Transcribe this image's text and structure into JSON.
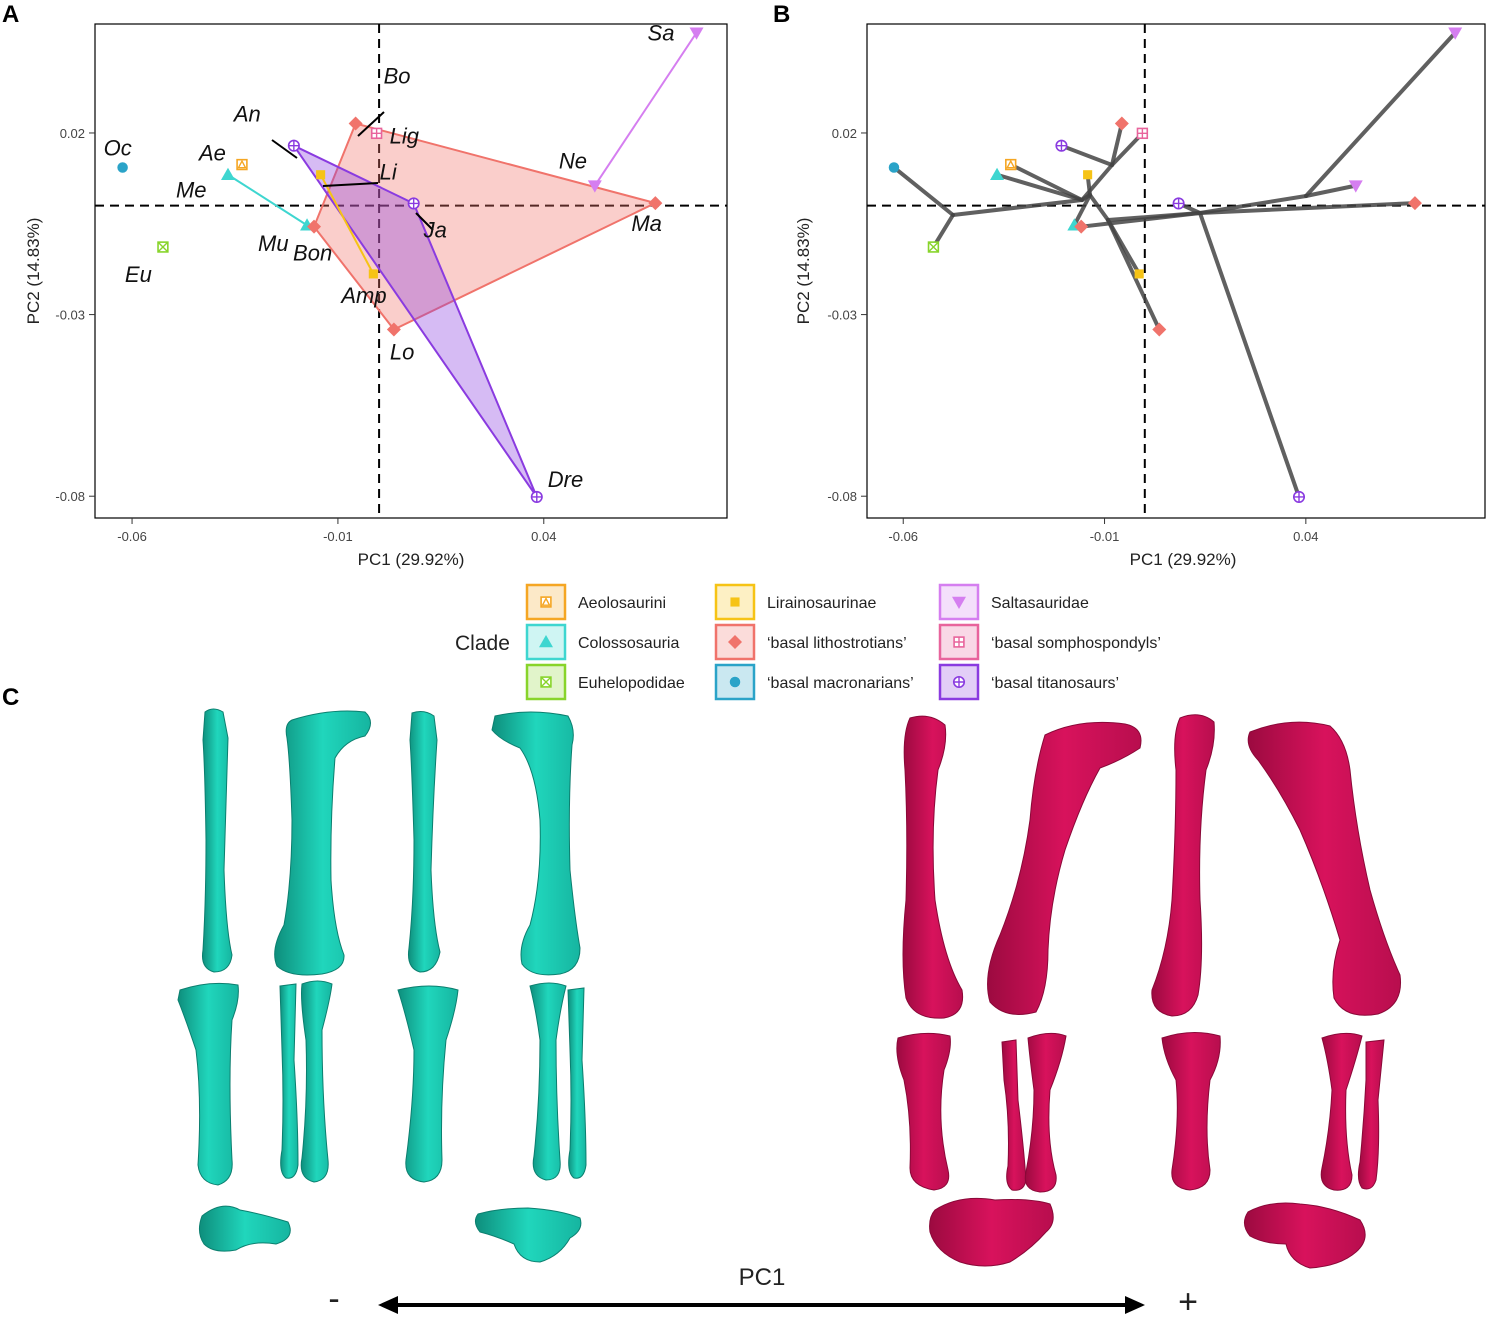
{
  "panels": {
    "a": {
      "letter": "A"
    },
    "b": {
      "letter": "B"
    },
    "c": {
      "letter": "C"
    }
  },
  "axes": {
    "xlabel": "PC1 (29.92%)",
    "ylabel": "PC2 (14.83%)",
    "x_ticks": [
      "-0.06",
      "-0.01",
      "0.04"
    ],
    "y_ticks": [
      "0.02",
      "-0.03",
      "-0.08"
    ]
  },
  "legend": {
    "title": "Clade",
    "items": [
      {
        "label": "Aeolosaurini",
        "color": "#F5A623",
        "shape": "square-triangle"
      },
      {
        "label": "Colossosauria",
        "color": "#3ED6D0",
        "shape": "triangle-up"
      },
      {
        "label": "Euhelopodidae",
        "color": "#88D42B",
        "shape": "square-x"
      },
      {
        "label": "Lirainosaurinae",
        "color": "#F6C315",
        "shape": "square"
      },
      {
        "label": "‘basal lithostrotians’",
        "color": "#F0736B",
        "shape": "diamond"
      },
      {
        "label": "‘basal macronarians’",
        "color": "#2AA3C8",
        "shape": "circle"
      },
      {
        "label": "Saltasauridae",
        "color": "#D57EF0",
        "shape": "triangle-down"
      },
      {
        "label": "‘basal somphospondyls’",
        "color": "#E8649C",
        "shape": "square-plus"
      },
      {
        "label": "‘basal titanosaurs’",
        "color": "#8A3BE0",
        "shape": "circle-plus"
      }
    ]
  },
  "bottom_axis": {
    "label": "PC1",
    "minus": "-",
    "plus": "+"
  },
  "colors": {
    "teal_bones": "#1DD3B8",
    "crimson_bones": "#D4115A",
    "hull_red": "#F0736B",
    "hull_purple": "#8A3BE0",
    "tree": "#444444"
  },
  "chart_data": [
    {
      "type": "scatter",
      "panel": "A",
      "xlabel": "PC1 (29.92%)",
      "ylabel": "PC2 (14.83%)",
      "xlim": [
        -0.069,
        0.0845
      ],
      "ylim": [
        -0.086,
        0.05
      ],
      "x_ticks": [
        -0.06,
        -0.01,
        0.04
      ],
      "y_ticks": [
        0.02,
        -0.03,
        -0.08
      ],
      "reference_lines": {
        "x": 0.0,
        "y": 0.0
      },
      "grid": false,
      "points": [
        {
          "label": "Oc",
          "x": -0.0623,
          "y": 0.0105,
          "clade": "‘basal macronarians’"
        },
        {
          "label": "Eu",
          "x": -0.0525,
          "y": -0.0114,
          "clade": "Euhelopodidae"
        },
        {
          "label": "Ae",
          "x": -0.0333,
          "y": 0.0113,
          "clade": "Aeolosaurini"
        },
        {
          "label": "Me",
          "x": -0.0367,
          "y": 0.0085,
          "clade": "Colossosauria"
        },
        {
          "label": "An",
          "x": -0.0207,
          "y": 0.0165,
          "clade": "‘basal titanosaurs’"
        },
        {
          "label": "Mu",
          "x": -0.0175,
          "y": -0.0054,
          "clade": "Colossosauria"
        },
        {
          "label": "Bon",
          "x": -0.0158,
          "y": -0.0058,
          "clade": "‘basal lithostrotians’"
        },
        {
          "label": "Bo",
          "x": -0.0057,
          "y": 0.0226,
          "clade": "‘basal lithostrotians’"
        },
        {
          "label": "Lig",
          "x": -0.0006,
          "y": 0.0199,
          "clade": "‘basal somphospondyls’"
        },
        {
          "label": "Li",
          "x": -0.0142,
          "y": 0.0085,
          "clade": "Lirainosaurinae"
        },
        {
          "label": "Amp",
          "x": -0.0014,
          "y": -0.0188,
          "clade": "Lirainosaurinae"
        },
        {
          "label": "Lo",
          "x": 0.0036,
          "y": -0.0341,
          "clade": "‘basal lithostrotians’"
        },
        {
          "label": "Ja",
          "x": 0.0084,
          "y": 0.0006,
          "clade": "‘basal titanosaurs’"
        },
        {
          "label": "Dre",
          "x": 0.0383,
          "y": -0.0802,
          "clade": "‘basal titanosaurs’"
        },
        {
          "label": "Ne",
          "x": 0.0524,
          "y": 0.0055,
          "clade": "Saltasauridae"
        },
        {
          "label": "Ma",
          "x": 0.0671,
          "y": 0.0007,
          "clade": "‘basal lithostrotians’"
        },
        {
          "label": "Sa",
          "x": 0.0771,
          "y": 0.0476,
          "clade": "Saltasauridae"
        }
      ]
    },
    {
      "type": "scatter",
      "panel": "B",
      "xlabel": "PC1 (29.92%)",
      "ylabel": "PC2 (14.83%)",
      "xlim": [
        -0.069,
        0.0845
      ],
      "ylim": [
        -0.086,
        0.05
      ],
      "x_ticks": [
        -0.06,
        -0.01,
        0.04
      ],
      "y_ticks": [
        0.02,
        -0.03,
        -0.08
      ],
      "reference_lines": {
        "x": 0.0,
        "y": 0.0
      },
      "grid": false,
      "note": "phylomorphospace: tips connected by dark grey tree branches",
      "points": [
        {
          "x": -0.0623,
          "y": 0.0105,
          "clade": "‘basal macronarians’"
        },
        {
          "x": -0.0525,
          "y": -0.0114,
          "clade": "Euhelopodidae"
        },
        {
          "x": -0.0333,
          "y": 0.0113,
          "clade": "Aeolosaurini"
        },
        {
          "x": -0.0367,
          "y": 0.0085,
          "clade": "Colossosauria"
        },
        {
          "x": -0.0207,
          "y": 0.0165,
          "clade": "‘basal titanosaurs’"
        },
        {
          "x": -0.0175,
          "y": -0.0054,
          "clade": "Colossosauria"
        },
        {
          "x": -0.0158,
          "y": -0.0058,
          "clade": "‘basal lithostrotians’"
        },
        {
          "x": -0.0057,
          "y": 0.0226,
          "clade": "‘basal lithostrotians’"
        },
        {
          "x": -0.0006,
          "y": 0.0199,
          "clade": "‘basal somphospondyls’"
        },
        {
          "x": -0.0142,
          "y": 0.0085,
          "clade": "Lirainosaurinae"
        },
        {
          "x": -0.0014,
          "y": -0.0188,
          "clade": "Lirainosaurinae"
        },
        {
          "x": 0.0036,
          "y": -0.0341,
          "clade": "‘basal lithostrotians’"
        },
        {
          "x": 0.0084,
          "y": 0.0006,
          "clade": "‘basal titanosaurs’"
        },
        {
          "x": 0.0383,
          "y": -0.0802,
          "clade": "‘basal titanosaurs’"
        },
        {
          "x": 0.0524,
          "y": 0.0055,
          "clade": "Saltasauridae"
        },
        {
          "x": 0.0671,
          "y": 0.0007,
          "clade": "‘basal lithostrotians’"
        },
        {
          "x": 0.0771,
          "y": 0.0476,
          "clade": "Saltasauridae"
        }
      ]
    }
  ]
}
